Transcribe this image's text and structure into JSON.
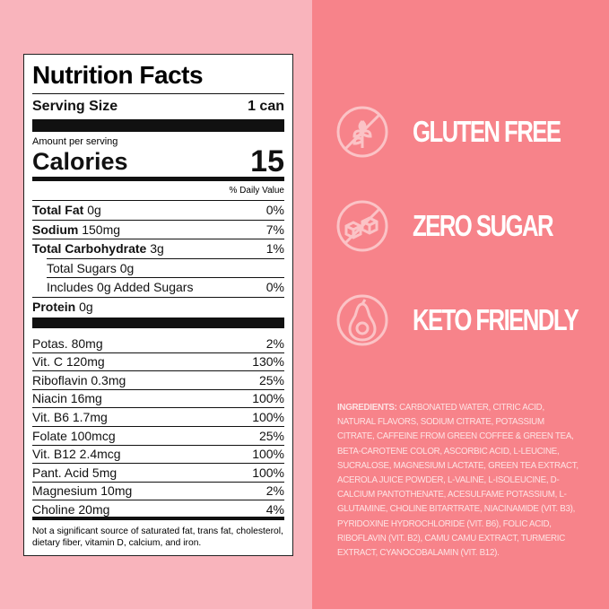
{
  "nutrition": {
    "title": "Nutrition Facts",
    "serving_size_label": "Serving Size",
    "serving_size_value": "1 can",
    "amount_per_serving": "Amount per serving",
    "calories_label": "Calories",
    "calories_value": "15",
    "dv_header": "% Daily Value",
    "macros": [
      {
        "name": "Total Fat",
        "amount": "0g",
        "dv": "0%",
        "bold": true,
        "indent": 0
      },
      {
        "name": "Sodium",
        "amount": "150mg",
        "dv": "7%",
        "bold": true,
        "indent": 0
      },
      {
        "name": "Total Carbohydrate",
        "amount": "3g",
        "dv": "1%",
        "bold": true,
        "indent": 0
      },
      {
        "name": "Total Sugars",
        "amount": "0g",
        "dv": "",
        "bold": false,
        "indent": 1
      },
      {
        "name": "Includes 0g Added Sugars",
        "amount": "",
        "dv": "0%",
        "bold": false,
        "indent": 2
      },
      {
        "name": "Protein",
        "amount": "0g",
        "dv": "",
        "bold": true,
        "indent": 0
      }
    ],
    "micros": [
      {
        "name": "Potas. 80mg",
        "dv": "2%"
      },
      {
        "name": "Vit. C 120mg",
        "dv": "130%"
      },
      {
        "name": "Riboflavin 0.3mg",
        "dv": "25%"
      },
      {
        "name": "Niacin 16mg",
        "dv": "100%"
      },
      {
        "name": "Vit. B6 1.7mg",
        "dv": "100%"
      },
      {
        "name": "Folate 100mcg",
        "dv": "25%"
      },
      {
        "name": "Vit. B12 2.4mcg",
        "dv": "100%"
      },
      {
        "name": "Pant. Acid 5mg",
        "dv": "100%"
      },
      {
        "name": "Magnesium 10mg",
        "dv": "2%"
      },
      {
        "name": "Choline 20mg",
        "dv": "4%"
      }
    ],
    "footnote": "Not a significant source of saturated fat, trans fat, cholesterol, dietary fiber, vitamin D, calcium, and iron."
  },
  "claims": [
    {
      "label": "GLUTEN FREE",
      "icon": "no-wheat-icon"
    },
    {
      "label": "ZERO SUGAR",
      "icon": "no-sugar-cubes-icon"
    },
    {
      "label": "KETO FRIENDLY",
      "icon": "avocado-icon"
    }
  ],
  "ingredients": {
    "label": "INGREDIENTS:",
    "text": "CARBONATED WATER, CITRIC ACID, NATURAL FLAVORS, SODIUM CITRATE, POTASSIUM CITRATE, CAFFEINE FROM GREEN COFFEE & GREEN TEA, BETA-CAROTENE COLOR, ASCORBIC ACID, L-LEUCINE, SUCRALOSE, MAGNESIUM LACTATE, GREEN TEA EXTRACT, ACEROLA JUICE POWDER, L-VALINE, L-ISOLEUCINE, D-CALCIUM PANTOTHENATE, ACESULFAME POTASSIUM, L-GLUTAMINE, CHOLINE BITARTRATE, NIACINAMIDE (VIT. B3), PYRIDOXINE HYDROCHLORIDE (VIT. B6), FOLIC ACID, RIBOFLAVIN (VIT. B2), CAMU CAMU EXTRACT, TURMERIC EXTRACT, CYANOCOBALAMIN (VIT. B12)."
  },
  "colors": {
    "left_bg": "#f9b4bc",
    "right_bg": "#f7838a",
    "icon": "#fbc3c6"
  }
}
